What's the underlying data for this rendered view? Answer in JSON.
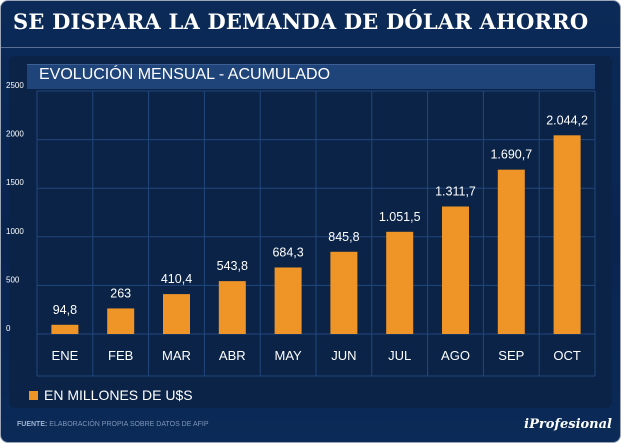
{
  "header": {
    "title": "SE DISPARA LA DEMANDA DE DÓLAR AHORRO"
  },
  "chart_data": {
    "type": "bar",
    "title": "EVOLUCIÓN MENSUAL - ACUMULADO",
    "categories": [
      "ENE",
      "FEB",
      "MAR",
      "ABR",
      "MAY",
      "JUN",
      "JUL",
      "AGO",
      "SEP",
      "OCT"
    ],
    "values": [
      94.8,
      263,
      410.4,
      543.8,
      684.3,
      845.8,
      1051.5,
      1311.7,
      1690.7,
      2044.2
    ],
    "value_labels": [
      "94,8",
      "263",
      "410,4",
      "543,8",
      "684,3",
      "845,8",
      "1.051,5",
      "1.311,7",
      "1.690,7",
      "2.044,2"
    ],
    "yticks": [
      0,
      500,
      1000,
      1500,
      2000,
      2500
    ],
    "ylim": [
      0,
      2500
    ],
    "xlabel": "",
    "ylabel": "",
    "grid": true,
    "legend": {
      "position": "bottom-left",
      "label": "EN MILLONES DE U$S"
    },
    "colors": {
      "bar": "#ef9527",
      "grid": "#22477d",
      "plot_bg": "#0a2347",
      "text": "#ffffff"
    }
  },
  "footer": {
    "source_label": "FUENTE:",
    "source_text": "ELABORACIÓN PROPIA SOBRE DATOS DE AFIP",
    "brand": "iProfesional"
  }
}
